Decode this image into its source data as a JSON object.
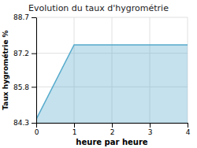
{
  "chart_data": {
    "type": "area",
    "title": "Evolution du taux d'hygrométrie",
    "x_label": "heure par heure",
    "y_label": "Taux hygrométrie %",
    "x": [
      0,
      1,
      4
    ],
    "values": [
      84.45,
      87.55,
      87.55
    ],
    "color": "#55aacc",
    "xlim": [
      0,
      4
    ],
    "xticks": [
      0,
      1,
      2,
      3,
      4
    ],
    "ylim": [
      84.3,
      88.7
    ],
    "yticks": [
      84.3,
      85.8,
      87.2,
      88.7
    ],
    "grid": true
  }
}
